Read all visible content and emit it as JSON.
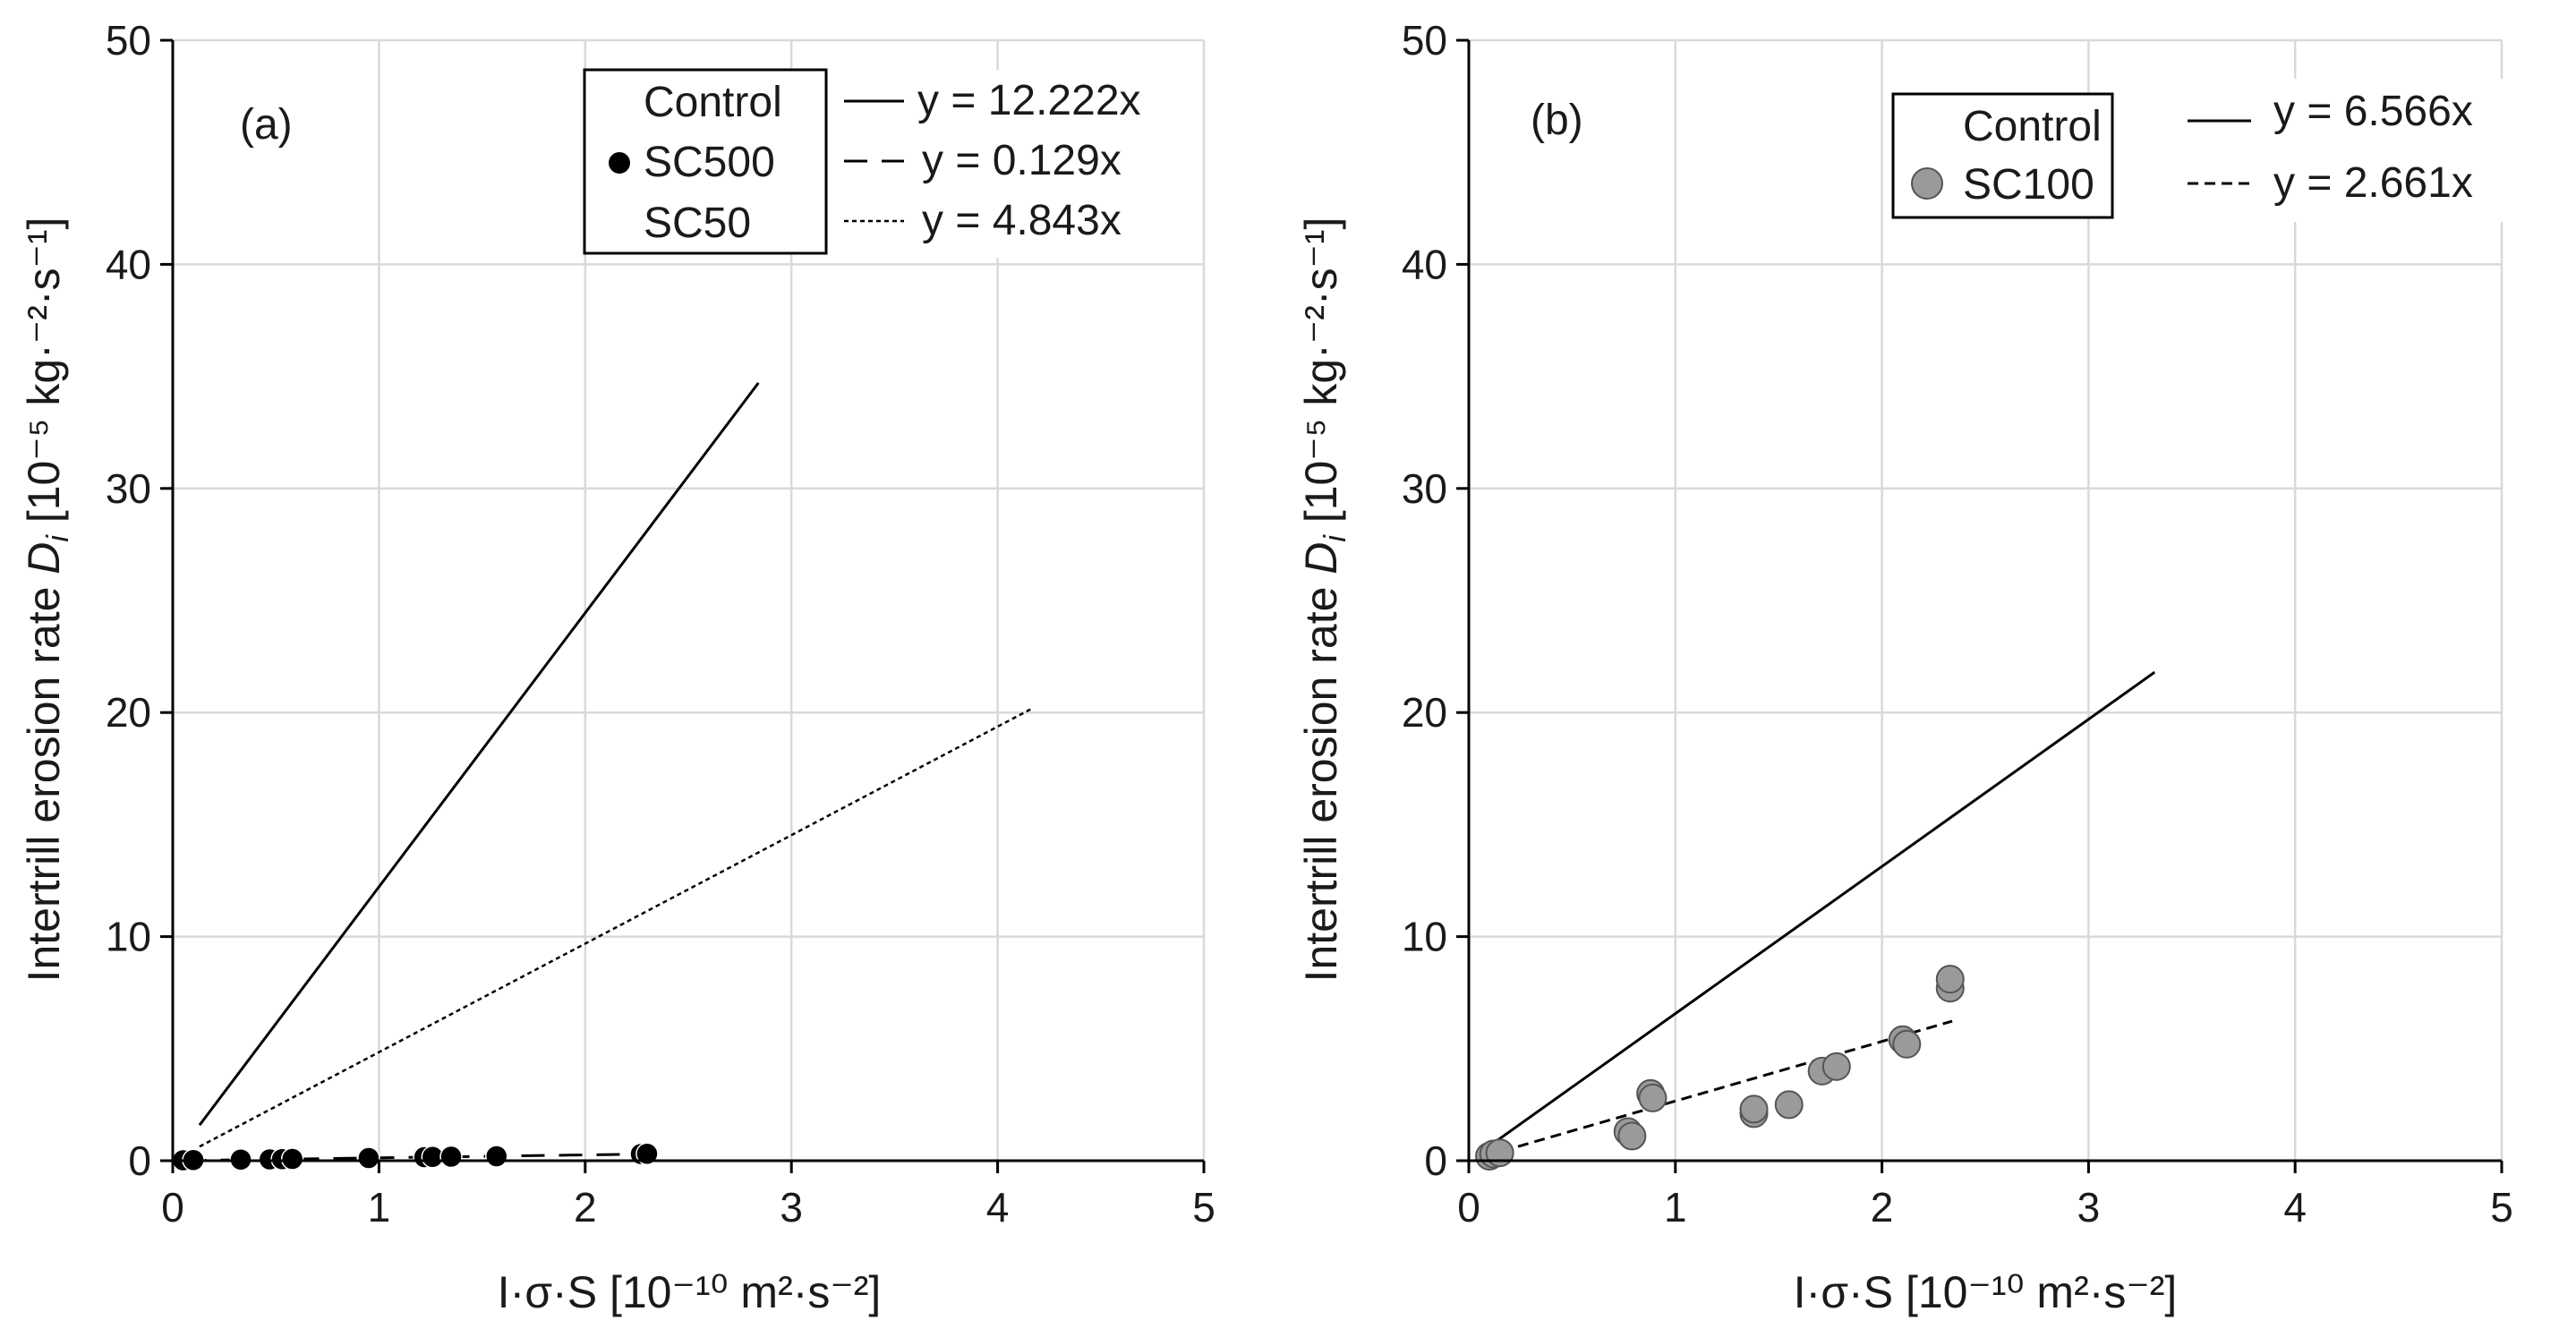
{
  "chart_data": [
    {
      "type": "scatter",
      "panel_label": "(a)",
      "xlabel": "I·σ·S [10⁻¹⁰ m²·s⁻²]",
      "ylabel_main": "Intertrill erosion rate ",
      "ylabel_symbol": "D",
      "ylabel_subscript": "i",
      "ylabel_unit": " [10⁻⁵ kg·⁻²·s⁻¹]",
      "xlim": [
        0,
        5
      ],
      "ylim": [
        0,
        50
      ],
      "xticks": [
        "0",
        "1",
        "2",
        "3",
        "4",
        "5"
      ],
      "yticks": [
        "0",
        "10",
        "20",
        "30",
        "40",
        "50"
      ],
      "grid": true,
      "legend_markers": [
        {
          "label": "Control",
          "marker": "none",
          "color": "#000000"
        },
        {
          "label": "SC500",
          "marker": "circle",
          "color": "#000000"
        },
        {
          "label": "SC50",
          "marker": "none",
          "color": "#000000"
        }
      ],
      "legend_lines": [
        {
          "label": "y = 12.222x",
          "dash": "solid"
        },
        {
          "label": "y = 0.129x",
          "dash": "long-dash"
        },
        {
          "label": "y = 4.843x",
          "dash": "dotted"
        }
      ],
      "fit_lines": [
        {
          "name": "Control",
          "slope": 12.222,
          "x": [
            0.13,
            2.84
          ],
          "dash": "solid"
        },
        {
          "name": "SC500",
          "slope": 0.129,
          "x": [
            0.05,
            2.3
          ],
          "dash": "long-dash"
        },
        {
          "name": "SC50",
          "slope": 4.843,
          "x": [
            0.13,
            4.17
          ],
          "dash": "dotted"
        }
      ],
      "series": [
        {
          "name": "SC500",
          "color": "#000000",
          "points": [
            [
              0.05,
              0.02
            ],
            [
              0.1,
              0.03
            ],
            [
              0.33,
              0.05
            ],
            [
              0.47,
              0.06
            ],
            [
              0.53,
              0.07
            ],
            [
              0.58,
              0.08
            ],
            [
              0.95,
              0.12
            ],
            [
              1.22,
              0.16
            ],
            [
              1.26,
              0.17
            ],
            [
              1.35,
              0.18
            ],
            [
              1.57,
              0.2
            ],
            [
              2.27,
              0.3
            ],
            [
              2.3,
              0.31
            ]
          ]
        }
      ]
    },
    {
      "type": "scatter",
      "panel_label": "(b)",
      "xlabel": "I·σ·S [10⁻¹⁰ m²·s⁻²]",
      "ylabel_main": "Intertrill erosion rate ",
      "ylabel_symbol": "D",
      "ylabel_subscript": "i",
      "ylabel_unit": " [10⁻⁵ kg·⁻²·s⁻¹]",
      "xlim": [
        0,
        5
      ],
      "ylim": [
        0,
        50
      ],
      "xticks": [
        "0",
        "1",
        "2",
        "3",
        "4",
        "5"
      ],
      "yticks": [
        "0",
        "10",
        "20",
        "30",
        "40",
        "50"
      ],
      "grid": true,
      "legend_markers": [
        {
          "label": "Control",
          "marker": "none",
          "color": "#000000"
        },
        {
          "label": "SC100",
          "marker": "circle",
          "color": "#9a9a9a"
        }
      ],
      "legend_lines": [
        {
          "label": "y = 6.566x",
          "dash": "solid"
        },
        {
          "label": "y = 2.661x",
          "dash": "dashed"
        }
      ],
      "fit_lines": [
        {
          "name": "Control",
          "slope": 6.566,
          "x": [
            0.12,
            3.32
          ],
          "dash": "solid"
        },
        {
          "name": "SC100",
          "slope": 2.661,
          "x": [
            0.08,
            2.34
          ],
          "dash": "dashed"
        }
      ],
      "series": [
        {
          "name": "SC100",
          "color": "#9a9a9a",
          "points": [
            [
              0.1,
              0.2
            ],
            [
              0.12,
              0.3
            ],
            [
              0.15,
              0.35
            ],
            [
              0.77,
              1.3
            ],
            [
              0.79,
              1.1
            ],
            [
              0.88,
              3.0
            ],
            [
              0.89,
              2.8
            ],
            [
              1.38,
              2.1
            ],
            [
              1.38,
              2.3
            ],
            [
              1.55,
              2.5
            ],
            [
              1.71,
              4.0
            ],
            [
              1.78,
              4.2
            ],
            [
              2.1,
              5.4
            ],
            [
              2.12,
              5.2
            ],
            [
              2.33,
              7.7
            ],
            [
              2.33,
              8.1
            ]
          ]
        }
      ]
    }
  ]
}
